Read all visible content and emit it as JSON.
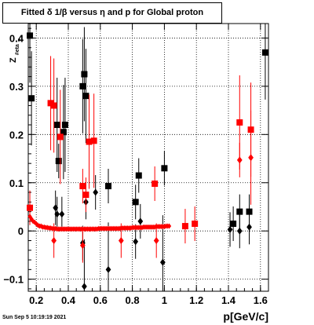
{
  "title": "Fitted δ 1/β versus η and p for Global proton",
  "xlabel": "p[GeV/c]",
  "ylabel": "Z_{#eta_{#pi}}",
  "ylabel_main": "Z",
  "ylabel_sub": "#eta",
  "ylabel_subsub": "π",
  "timestamp": "Sun Sep  5 10:19:19 2021",
  "chart_data": {
    "type": "scatter",
    "title": "Fitted δ 1/β versus η and p for Global proton",
    "xlabel": "p[GeV/c]",
    "ylabel": "",
    "xlim": [
      0.15,
      1.65
    ],
    "ylim": [
      -0.125,
      0.43
    ],
    "grid": true,
    "x_ticks": [
      0.2,
      0.4,
      0.6,
      0.8,
      1,
      1.2,
      1.4,
      1.6
    ],
    "x_tick_labels": [
      "0.2",
      "0.4",
      "0.6",
      "0.8",
      "1",
      "1.2",
      "1.4",
      "1.6"
    ],
    "y_ticks": [
      -0.1,
      0,
      0.1,
      0.2,
      0.3,
      0.4
    ],
    "y_tick_labels": [
      "−0.1",
      "0",
      "0.1",
      "0.2",
      "0.3",
      "0.4"
    ],
    "series": [
      {
        "color": "#000000",
        "marker": "square",
        "points": [
          {
            "x": 0.16,
            "y": 0.405
          },
          {
            "x": 0.17,
            "y": 0.275
          },
          {
            "x": 0.33,
            "y": 0.22
          },
          {
            "x": 0.34,
            "y": 0.145
          },
          {
            "x": 0.37,
            "y": 0.205
          },
          {
            "x": 0.38,
            "y": 0.22
          },
          {
            "x": 0.49,
            "y": 0.3
          },
          {
            "x": 0.5,
            "y": 0.325
          },
          {
            "x": 0.51,
            "y": 0.28
          },
          {
            "x": 0.65,
            "y": 0.093
          },
          {
            "x": 0.82,
            "y": 0.06
          },
          {
            "x": 0.84,
            "y": 0.115
          },
          {
            "x": 1.0,
            "y": 0.13
          },
          {
            "x": 1.43,
            "y": 0.015
          },
          {
            "x": 1.47,
            "y": 0.04
          },
          {
            "x": 1.53,
            "y": 0.04
          },
          {
            "x": 1.63,
            "y": 0.37
          }
        ]
      },
      {
        "color": "#000000",
        "marker": "diamond",
        "points": [
          {
            "x": 0.32,
            "y": 0.048
          },
          {
            "x": 0.33,
            "y": 0.035
          },
          {
            "x": 0.36,
            "y": 0.035
          },
          {
            "x": 0.49,
            "y": -0.025
          },
          {
            "x": 0.5,
            "y": -0.115
          },
          {
            "x": 0.51,
            "y": 0.06
          },
          {
            "x": 0.57,
            "y": 0.08
          },
          {
            "x": 0.65,
            "y": -0.08
          },
          {
            "x": 0.82,
            "y": -0.022
          },
          {
            "x": 0.85,
            "y": 0.02
          },
          {
            "x": 0.99,
            "y": -0.065
          },
          {
            "x": 1.41,
            "y": 0.003
          },
          {
            "x": 1.47,
            "y": 0.0
          },
          {
            "x": 1.53,
            "y": 0.008
          }
        ]
      },
      {
        "color": "#ff0000",
        "marker": "square",
        "points": [
          {
            "x": 0.16,
            "y": 0.048
          },
          {
            "x": 0.29,
            "y": 0.265
          },
          {
            "x": 0.31,
            "y": 0.26
          },
          {
            "x": 0.35,
            "y": 0.195
          },
          {
            "x": 0.49,
            "y": 0.093
          },
          {
            "x": 0.51,
            "y": 0.075
          },
          {
            "x": 0.53,
            "y": 0.185
          },
          {
            "x": 0.56,
            "y": 0.187
          },
          {
            "x": 0.94,
            "y": 0.098
          },
          {
            "x": 1.13,
            "y": 0.01
          },
          {
            "x": 1.19,
            "y": 0.015
          },
          {
            "x": 1.47,
            "y": 0.225
          },
          {
            "x": 1.54,
            "y": 0.21
          }
        ]
      },
      {
        "color": "#ff0000",
        "marker": "diamond",
        "points": [
          {
            "x": 0.31,
            "y": -0.02
          },
          {
            "x": 0.49,
            "y": -0.03
          },
          {
            "x": 0.73,
            "y": -0.02
          },
          {
            "x": 0.95,
            "y": -0.02
          },
          {
            "x": 1.47,
            "y": 0.147
          },
          {
            "x": 1.54,
            "y": 0.152
          }
        ]
      },
      {
        "color": "#ff0000",
        "marker": "diamond",
        "band": true,
        "points": [
          {
            "x": 0.16,
            "y": 0.03
          },
          {
            "x": 0.17,
            "y": 0.025
          },
          {
            "x": 0.18,
            "y": 0.02
          },
          {
            "x": 0.19,
            "y": 0.018
          },
          {
            "x": 0.2,
            "y": 0.015
          },
          {
            "x": 0.21,
            "y": 0.012
          },
          {
            "x": 0.22,
            "y": 0.01
          },
          {
            "x": 0.23,
            "y": 0.01
          },
          {
            "x": 0.24,
            "y": 0.008
          },
          {
            "x": 0.25,
            "y": 0.008
          },
          {
            "x": 0.26,
            "y": 0.007
          },
          {
            "x": 0.27,
            "y": 0.007
          },
          {
            "x": 0.28,
            "y": 0.006
          },
          {
            "x": 0.29,
            "y": 0.006
          },
          {
            "x": 0.3,
            "y": 0.005
          },
          {
            "x": 0.31,
            "y": 0.005
          },
          {
            "x": 0.32,
            "y": 0.005
          },
          {
            "x": 0.33,
            "y": 0.004
          },
          {
            "x": 0.34,
            "y": 0.004
          },
          {
            "x": 0.35,
            "y": 0.004
          },
          {
            "x": 0.36,
            "y": 0.004
          },
          {
            "x": 0.37,
            "y": 0.004
          },
          {
            "x": 0.38,
            "y": 0.004
          },
          {
            "x": 0.39,
            "y": 0.004
          },
          {
            "x": 0.4,
            "y": 0.004
          },
          {
            "x": 0.41,
            "y": 0.004
          },
          {
            "x": 0.42,
            "y": 0.004
          },
          {
            "x": 0.43,
            "y": 0.004
          },
          {
            "x": 0.44,
            "y": 0.004
          },
          {
            "x": 0.45,
            "y": 0.004
          },
          {
            "x": 0.46,
            "y": 0.004
          },
          {
            "x": 0.47,
            "y": 0.004
          },
          {
            "x": 0.48,
            "y": 0.004
          },
          {
            "x": 0.49,
            "y": 0.004
          },
          {
            "x": 0.5,
            "y": 0.004
          },
          {
            "x": 0.51,
            "y": 0.004
          },
          {
            "x": 0.52,
            "y": 0.004
          },
          {
            "x": 0.53,
            "y": 0.004
          },
          {
            "x": 0.54,
            "y": 0.004
          },
          {
            "x": 0.55,
            "y": 0.004
          },
          {
            "x": 0.56,
            "y": 0.004
          },
          {
            "x": 0.57,
            "y": 0.004
          },
          {
            "x": 0.58,
            "y": 0.004
          },
          {
            "x": 0.59,
            "y": 0.005
          },
          {
            "x": 0.6,
            "y": 0.005
          },
          {
            "x": 0.61,
            "y": 0.005
          },
          {
            "x": 0.62,
            "y": 0.005
          },
          {
            "x": 0.63,
            "y": 0.005
          },
          {
            "x": 0.64,
            "y": 0.005
          },
          {
            "x": 0.65,
            "y": 0.005
          },
          {
            "x": 0.66,
            "y": 0.005
          },
          {
            "x": 0.67,
            "y": 0.005
          },
          {
            "x": 0.68,
            "y": 0.005
          },
          {
            "x": 0.69,
            "y": 0.005
          },
          {
            "x": 0.7,
            "y": 0.005
          },
          {
            "x": 0.71,
            "y": 0.005
          },
          {
            "x": 0.72,
            "y": 0.005
          },
          {
            "x": 0.73,
            "y": 0.006
          },
          {
            "x": 0.74,
            "y": 0.006
          },
          {
            "x": 0.75,
            "y": 0.006
          },
          {
            "x": 0.76,
            "y": 0.006
          },
          {
            "x": 0.77,
            "y": 0.006
          },
          {
            "x": 0.78,
            "y": 0.006
          },
          {
            "x": 0.79,
            "y": 0.006
          },
          {
            "x": 0.8,
            "y": 0.007
          },
          {
            "x": 0.81,
            "y": 0.007
          },
          {
            "x": 0.82,
            "y": 0.007
          },
          {
            "x": 0.83,
            "y": 0.007
          },
          {
            "x": 0.84,
            "y": 0.007
          },
          {
            "x": 0.85,
            "y": 0.007
          },
          {
            "x": 0.86,
            "y": 0.007
          },
          {
            "x": 0.87,
            "y": 0.008
          },
          {
            "x": 0.88,
            "y": 0.008
          },
          {
            "x": 0.89,
            "y": 0.008
          },
          {
            "x": 0.9,
            "y": 0.008
          },
          {
            "x": 0.91,
            "y": 0.008
          },
          {
            "x": 0.92,
            "y": 0.008
          },
          {
            "x": 0.93,
            "y": 0.008
          },
          {
            "x": 0.94,
            "y": 0.008
          },
          {
            "x": 0.95,
            "y": 0.009
          },
          {
            "x": 0.96,
            "y": 0.009
          },
          {
            "x": 0.97,
            "y": 0.009
          },
          {
            "x": 0.98,
            "y": 0.009
          },
          {
            "x": 0.99,
            "y": 0.009
          },
          {
            "x": 1.0,
            "y": 0.009
          },
          {
            "x": 1.01,
            "y": 0.01
          },
          {
            "x": 1.02,
            "y": 0.01
          },
          {
            "x": 1.03,
            "y": 0.01
          }
        ]
      }
    ]
  }
}
